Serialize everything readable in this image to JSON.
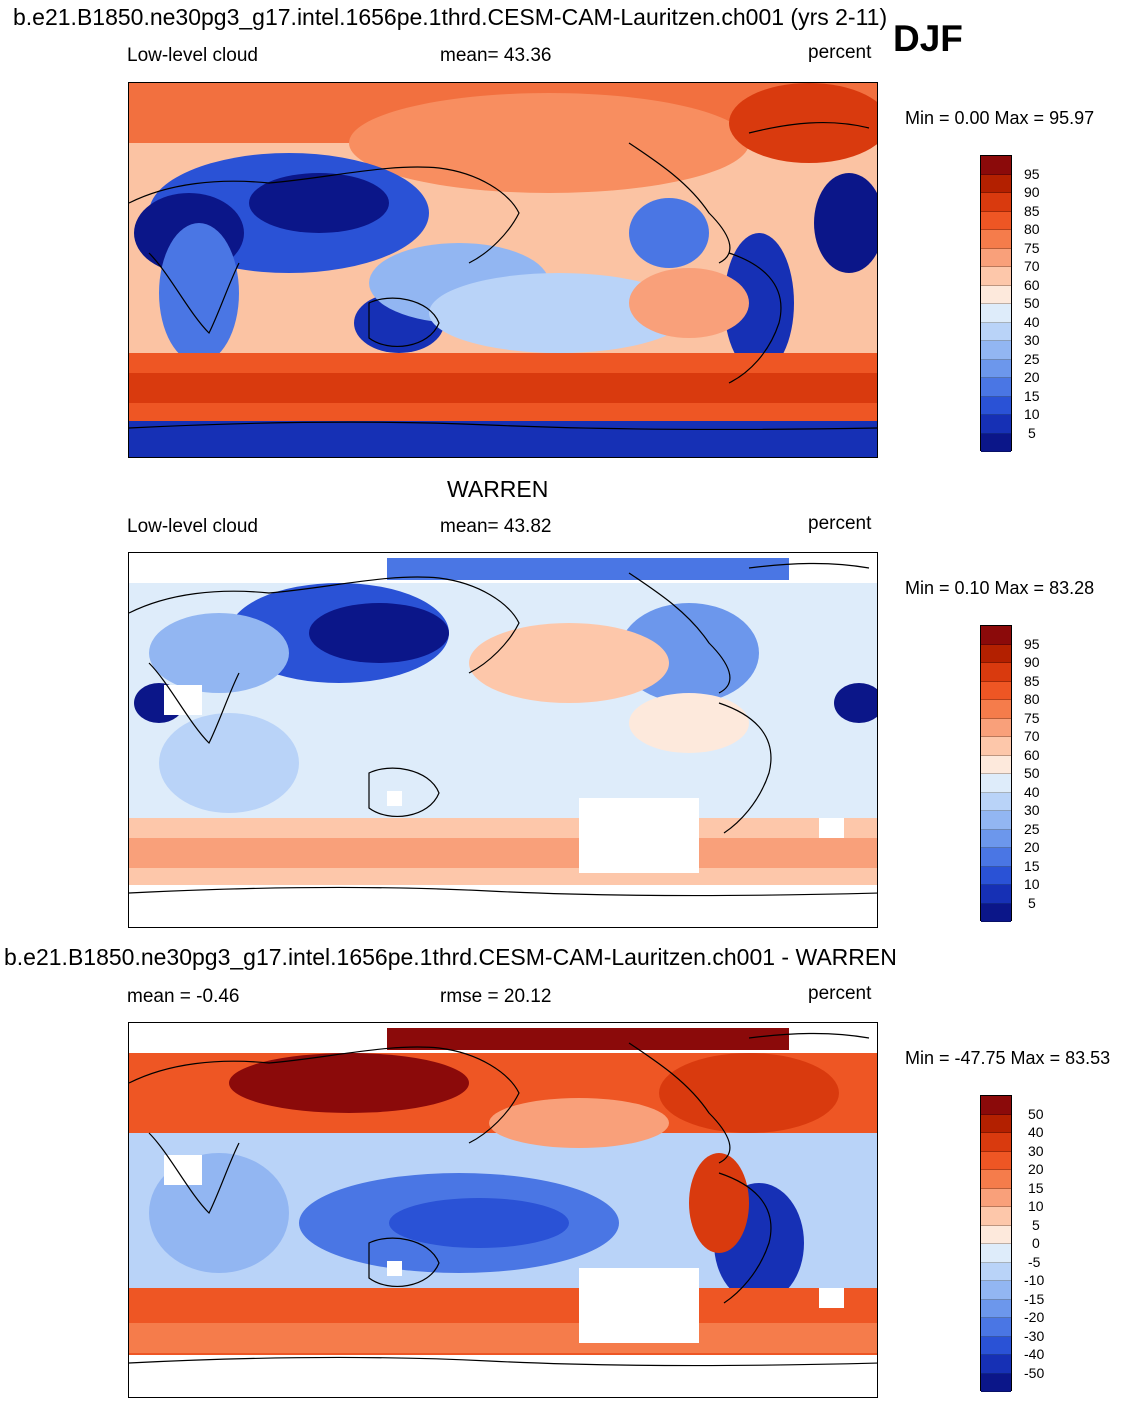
{
  "top_title": "b.e21.B1850.ne30pg3_g17.intel.1656pe.1thrd.CESM-CAM-Lauritzen.ch001 (yrs 2-11)",
  "season": "DJF",
  "panels": [
    {
      "left_label": "Low-level cloud",
      "center_label": "mean=  43.36",
      "right_label": "percent",
      "minmax": "Min =    0.00 Max =  95.97",
      "colorbar_labels": [
        "95",
        "90",
        "85",
        "80",
        "75",
        "70",
        "60",
        "50",
        "40",
        "30",
        "25",
        "20",
        "15",
        "10",
        "5"
      ],
      "heading": ""
    },
    {
      "heading": "WARREN",
      "left_label": "Low-level cloud",
      "center_label": "mean=  43.82",
      "right_label": "percent",
      "minmax": "Min =   0.10 Max =  83.28",
      "colorbar_labels": [
        "95",
        "90",
        "85",
        "80",
        "75",
        "70",
        "60",
        "50",
        "40",
        "30",
        "25",
        "20",
        "15",
        "10",
        "5"
      ]
    },
    {
      "heading": "b.e21.B1850.ne30pg3_g17.intel.1656pe.1thrd.CESM-CAM-Lauritzen.ch001 - WARREN",
      "left_label": "mean =  -0.46",
      "center_label": "rmse =  20.12",
      "right_label": "percent",
      "minmax": "Min = -47.75 Max =  83.53",
      "colorbar_labels": [
        "50",
        "40",
        "30",
        "20",
        "15",
        "10",
        "5",
        "0",
        "-5",
        "-10",
        "-15",
        "-20",
        "-30",
        "-40",
        "-50"
      ]
    }
  ],
  "colors": {
    "colorbar_top_to_bottom": [
      "#8b0a0a",
      "#b32000",
      "#d93a0e",
      "#ee5624",
      "#f57c4b",
      "#f9a07a",
      "#fdc7aa",
      "#fde9dc",
      "#deecfa",
      "#b9d3f8",
      "#92b6f2",
      "#6c97ec",
      "#4a76e4",
      "#2a52d6",
      "#1630b5",
      "#0b1689"
    ],
    "land_outline": "#000000"
  }
}
